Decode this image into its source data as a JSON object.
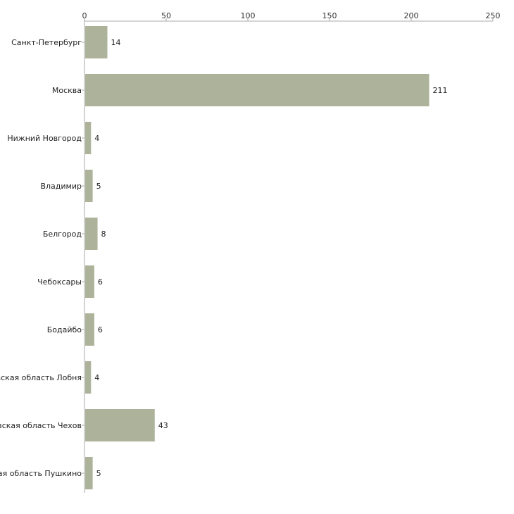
{
  "chart_data": {
    "type": "bar",
    "orientation": "horizontal",
    "title": "",
    "xlabel": "",
    "ylabel": "",
    "xlim": [
      0,
      250
    ],
    "xticks": [
      0,
      50,
      100,
      150,
      200,
      250
    ],
    "xtick_labels": [
      "0",
      "50",
      "100",
      "150",
      "200",
      "250"
    ],
    "axis_position": "top",
    "grid": false,
    "categories": [
      "Санкт-Петербург",
      "Москва",
      "Нижний Новгород",
      "Владимир",
      "Белгород",
      "Чебоксары",
      "Бодайбо",
      "Московская область Лобня",
      "Московская область Чехов",
      "Московская область Пушкино"
    ],
    "values": [
      14,
      211,
      4,
      5,
      8,
      6,
      6,
      4,
      43,
      5
    ],
    "value_labels": [
      "14",
      "211",
      "4",
      "5",
      "8",
      "6",
      "6",
      "4",
      "43",
      "5"
    ],
    "colors": {
      "bar": "#adb39a",
      "axis": "#aaaaaa"
    }
  }
}
